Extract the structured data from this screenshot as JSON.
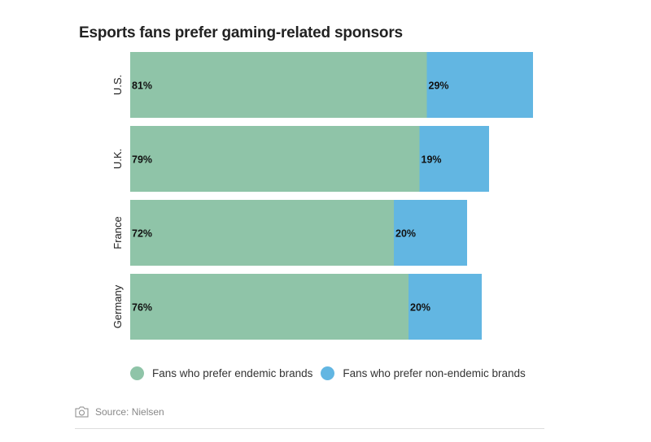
{
  "chart_data": {
    "type": "bar",
    "orientation": "horizontal",
    "stacked": true,
    "title": "Esports fans prefer gaming-related sponsors",
    "categories": [
      "U.S.",
      "U.K.",
      "France",
      "Germany"
    ],
    "series": [
      {
        "name": "Fans who prefer endemic brands",
        "values": [
          81,
          79,
          72,
          76
        ],
        "labels": [
          "81%",
          "79%",
          "72%",
          "76%"
        ],
        "color": "#8fc4a8"
      },
      {
        "name": "Fans who prefer non-endemic brands",
        "values": [
          29,
          19,
          20,
          20
        ],
        "labels": [
          "29%",
          "19%",
          "20%",
          "20%"
        ],
        "color": "#62b6e2"
      }
    ],
    "xlim": [
      0,
      110
    ],
    "grid": false,
    "legend_position": "bottom"
  },
  "footer": {
    "source": "Source: Nielsen",
    "icon": "camera-icon"
  }
}
